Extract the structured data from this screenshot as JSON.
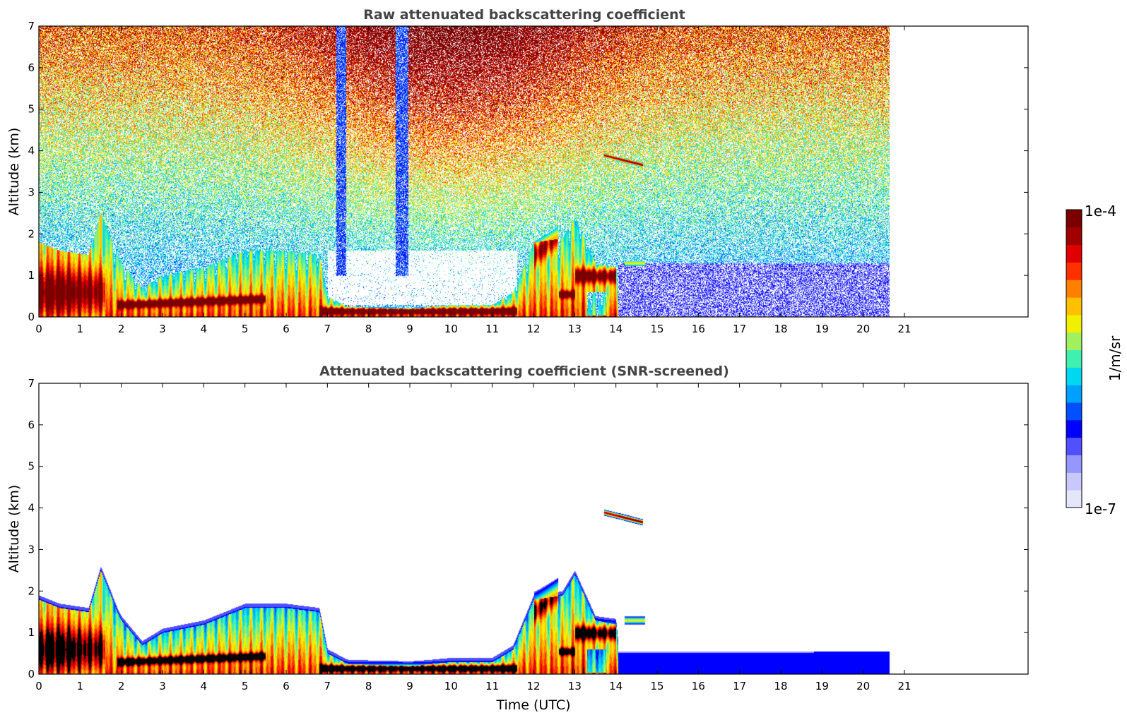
{
  "colors": {
    "background": "#ffffff",
    "title": "#444444",
    "axis": "#000000",
    "cloud_black": "#000000"
  },
  "colormap": [
    "#ffffff",
    "#e6e6fa",
    "#c8c8ff",
    "#9696ff",
    "#5050ff",
    "#0000ff",
    "#0050ff",
    "#00a0ff",
    "#00d8f0",
    "#40f0b0",
    "#a0f060",
    "#f0f000",
    "#ffc000",
    "#ff8000",
    "#ff3000",
    "#e00000",
    "#a00000",
    "#7a0000"
  ],
  "colorbar": {
    "top_label": "1e-4",
    "bottom_label": "1e-7",
    "unit_label": "1/m/sr",
    "scale": "log",
    "range": [
      1e-07,
      0.0001
    ]
  },
  "chart_data": [
    {
      "type": "heatmap",
      "title": "Raw attenuated backscattering coefficient",
      "ylabel": "Altitude (km)",
      "xlabel": "",
      "xlim": [
        0,
        24
      ],
      "ylim": [
        0,
        7
      ],
      "x_ticks": [
        0,
        1,
        2,
        3,
        4,
        5,
        6,
        7,
        8,
        9,
        10,
        11,
        12,
        13,
        14,
        15,
        16,
        17,
        18,
        19,
        20,
        21
      ],
      "y_ticks": [
        0,
        1,
        2,
        3,
        4,
        5,
        6,
        7
      ],
      "data_end_time": 20.65,
      "noise": "raw"
    },
    {
      "type": "heatmap",
      "title": "Attenuated backscattering coefficient (SNR-screened)",
      "ylabel": "Altitude (km)",
      "xlabel": "Time (UTC)",
      "xlim": [
        0,
        24
      ],
      "ylim": [
        0,
        7
      ],
      "x_ticks": [
        0,
        1,
        2,
        3,
        4,
        5,
        6,
        7,
        8,
        9,
        10,
        11,
        12,
        13,
        14,
        15,
        16,
        17,
        18,
        19,
        20,
        21
      ],
      "y_ticks": [
        0,
        1,
        2,
        3,
        4,
        5,
        6,
        7
      ],
      "data_end_time": 20.65,
      "noise": "screened"
    }
  ]
}
